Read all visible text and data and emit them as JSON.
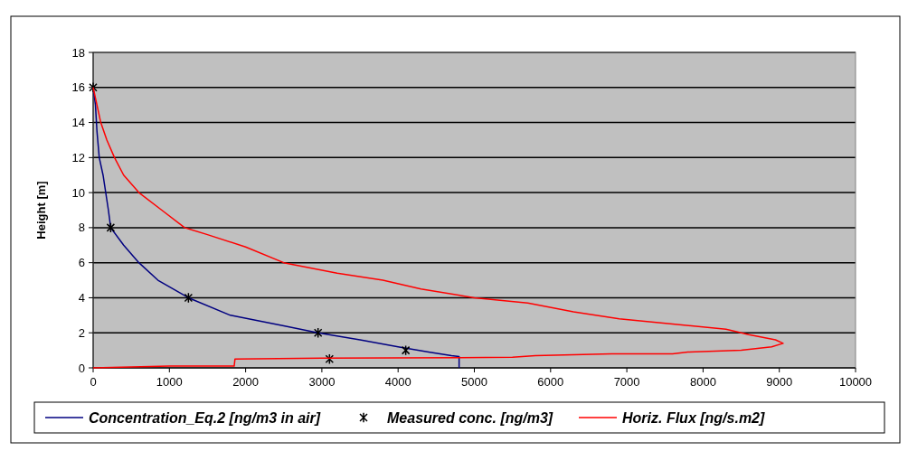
{
  "chart_data": {
    "type": "line",
    "ylabel": "Height [m]",
    "xlim": [
      0,
      10000
    ],
    "ylim": [
      0,
      18
    ],
    "xticks": [
      0,
      1000,
      2000,
      3000,
      4000,
      5000,
      6000,
      7000,
      8000,
      9000,
      10000
    ],
    "yticks": [
      0,
      2,
      4,
      6,
      8,
      10,
      12,
      14,
      16,
      18
    ],
    "grid": "y",
    "legend": "bottom",
    "series": [
      {
        "name": "Concentration_Eq.2 [ng/m3 in air]",
        "color": "#000080",
        "marker": "none",
        "x": [
          0,
          30,
          50,
          80,
          130,
          200,
          230,
          400,
          600,
          850,
          1250,
          1800,
          2500,
          2950,
          3500,
          4000,
          4400,
          4700,
          4800,
          4800
        ],
        "values": [
          16,
          15,
          13.5,
          12,
          11,
          9,
          8,
          7,
          6,
          5,
          4,
          3,
          2.4,
          2,
          1.6,
          1.2,
          0.9,
          0.7,
          0.65,
          0
        ]
      },
      {
        "name": "Measured conc. [ng/m3]",
        "type": "scatter",
        "color": "#000000",
        "marker": "cross",
        "x": [
          0,
          230,
          1250,
          2950,
          4100,
          3100
        ],
        "values": [
          16,
          8,
          4,
          2,
          1,
          0.5
        ]
      },
      {
        "name": "Horiz. Flux [ng/s.m2]",
        "color": "#ff0000",
        "marker": "none",
        "x": [
          0,
          1000,
          1850,
          1860,
          3000,
          5500,
          5800,
          6800,
          7600,
          7800,
          8500,
          8900,
          9050,
          8950,
          8600,
          8300,
          7600,
          6900,
          6300,
          5700,
          5000,
          4300,
          3800,
          3200,
          2500,
          2000,
          1500,
          1200,
          900,
          600,
          400,
          280,
          180,
          100,
          50,
          0
        ],
        "values": [
          0,
          0.1,
          0.1,
          0.5,
          0.55,
          0.6,
          0.7,
          0.8,
          0.8,
          0.9,
          1.0,
          1.2,
          1.4,
          1.6,
          1.9,
          2.2,
          2.5,
          2.8,
          3.2,
          3.7,
          4.0,
          4.5,
          5.0,
          5.4,
          6.0,
          6.9,
          7.6,
          8,
          9,
          10,
          11,
          12,
          13,
          14,
          15,
          16
        ]
      }
    ]
  }
}
